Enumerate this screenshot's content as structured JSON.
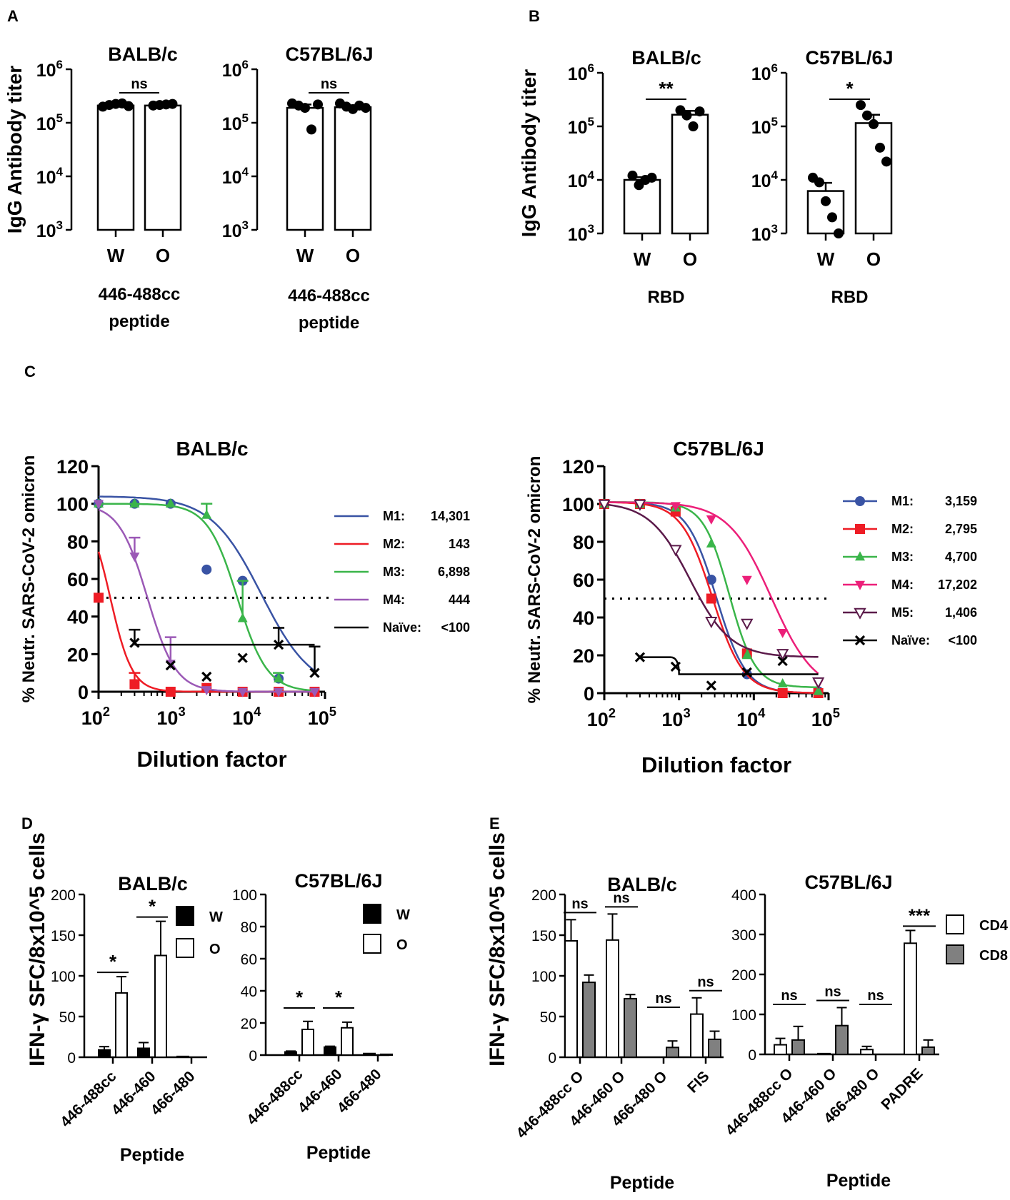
{
  "figure": {
    "panel_letters": [
      "A",
      "B",
      "C",
      "D",
      "E"
    ],
    "colors": {
      "black": "#000000",
      "white": "#ffffff",
      "gray_bar": "#808080",
      "blue": "#3953a4",
      "red": "#ee1c25",
      "green": "#3ab54a",
      "purple": "#9b59b6",
      "pink": "#ec1f79",
      "dark_purple": "#5b1a4a"
    }
  },
  "chart_data": [
    {
      "id": "A1",
      "panel": "A",
      "type": "bar",
      "title": "BALB/c",
      "ylabel": "IgG Antibody titer",
      "yscale": "log",
      "ylim": [
        1000,
        1000000
      ],
      "ytick_exponents": [
        "3",
        "4",
        "5",
        "6"
      ],
      "categories": [
        "W",
        "O"
      ],
      "values": [
        210000,
        210000
      ],
      "errors": [
        15000,
        8000
      ],
      "points": [
        [
          200000,
          215000,
          225000,
          230000,
          205000
        ],
        [
          210000,
          215000,
          220000,
          225000
        ]
      ],
      "xlabel_lines": [
        "446-488cc",
        "peptide"
      ],
      "significance": [
        {
          "between": [
            0,
            1
          ],
          "label": "ns"
        }
      ]
    },
    {
      "id": "A2",
      "panel": "A",
      "type": "bar",
      "title": "C57BL/6J",
      "ylabel": "",
      "yscale": "log",
      "ylim": [
        1000,
        1000000
      ],
      "ytick_exponents": [
        "3",
        "4",
        "5",
        "6"
      ],
      "categories": [
        "W",
        "O"
      ],
      "values": [
        190000,
        195000
      ],
      "errors": [
        30000,
        10000
      ],
      "points": [
        [
          230000,
          210000,
          190000,
          75000,
          220000
        ],
        [
          230000,
          200000,
          180000,
          210000,
          190000
        ]
      ],
      "xlabel_lines": [
        "446-488cc",
        "peptide"
      ],
      "significance": [
        {
          "between": [
            0,
            1
          ],
          "label": "ns"
        }
      ]
    },
    {
      "id": "B1",
      "panel": "B",
      "type": "bar",
      "title": "BALB/c",
      "ylabel": "IgG Antibody titer",
      "yscale": "log",
      "ylim": [
        1000,
        1000000
      ],
      "ytick_exponents": [
        "3",
        "4",
        "5",
        "6"
      ],
      "categories": [
        "W",
        "O"
      ],
      "values": [
        10000,
        165000
      ],
      "errors": [
        1200,
        30000
      ],
      "points": [
        [
          12000,
          8000,
          10000,
          11000
        ],
        [
          200000,
          160000,
          100000,
          190000
        ]
      ],
      "xlabel_lines": [
        "RBD"
      ],
      "significance": [
        {
          "between": [
            0,
            1
          ],
          "label": "**"
        }
      ]
    },
    {
      "id": "B2",
      "panel": "B",
      "type": "bar",
      "title": "C57BL/6J",
      "ylabel": "",
      "yscale": "log",
      "ylim": [
        1000,
        1000000
      ],
      "ytick_exponents": [
        "3",
        "4",
        "5",
        "6"
      ],
      "categories": [
        "W",
        "O"
      ],
      "values": [
        6200,
        115000
      ],
      "errors": [
        2600,
        50000
      ],
      "points": [
        [
          11000,
          9000,
          4000,
          2000,
          1000
        ],
        [
          250000,
          160000,
          110000,
          40000,
          22000
        ]
      ],
      "xlabel_lines": [
        "RBD"
      ],
      "significance": [
        {
          "between": [
            0,
            1
          ],
          "label": "*"
        }
      ]
    },
    {
      "id": "C1",
      "panel": "C",
      "type": "line",
      "title": "BALB/c",
      "ylabel": "% Neutr. SARS-CoV-2 omicron",
      "xlabel": "Dilution factor",
      "xscale": "log",
      "xlim": [
        100,
        100000
      ],
      "ylim": [
        0,
        120
      ],
      "xtick_exponents": [
        "2",
        "3",
        "4",
        "5"
      ],
      "yticks": [
        "0",
        "20",
        "40",
        "60",
        "80",
        "100",
        "120"
      ],
      "threshold": 50,
      "series": [
        {
          "name": "M1:",
          "value": "14,301",
          "color_key": "blue",
          "marker": "circle",
          "ic50": 14301,
          "top": 104,
          "bottom": 0,
          "slope": 1.3,
          "x": [
            100,
            300,
            900,
            2700,
            8100,
            24300
          ],
          "y": [
            100,
            100,
            100,
            65,
            59,
            7
          ],
          "err": [
            0,
            0,
            0,
            0,
            0,
            0
          ]
        },
        {
          "name": "M2:",
          "value": "143",
          "color_key": "red",
          "marker": "square",
          "ic50": 143,
          "top": 100,
          "bottom": 0,
          "slope": 3,
          "x": [
            100,
            300,
            900,
            2700,
            8100,
            24300,
            72900
          ],
          "y": [
            50,
            4,
            0,
            2,
            0,
            0,
            0
          ],
          "err": [
            0,
            6,
            0,
            0,
            0,
            0,
            0
          ]
        },
        {
          "name": "M3:",
          "value": "6,898",
          "color_key": "green",
          "marker": "triangle",
          "ic50": 6898,
          "top": 100,
          "bottom": 0,
          "slope": 2.2,
          "x": [
            100,
            300,
            900,
            2700,
            8100,
            24300
          ],
          "y": [
            100,
            100,
            100,
            94,
            39,
            7
          ],
          "err": [
            0,
            0,
            0,
            6,
            20,
            3
          ]
        },
        {
          "name": "M4:",
          "value": "444",
          "color_key": "purple",
          "marker": "triangle-down",
          "ic50": 444,
          "top": 100,
          "bottom": 0,
          "slope": 2.3,
          "x": [
            100,
            300,
            900,
            2700,
            8100,
            24300,
            72900
          ],
          "y": [
            100,
            72,
            15,
            1,
            0,
            0,
            0
          ],
          "err": [
            0,
            10,
            14,
            0,
            0,
            0,
            0
          ]
        },
        {
          "name": "Naïve:",
          "value": "<100",
          "color_key": "black",
          "marker": "x",
          "flat": 25,
          "flat_from": 300,
          "flat_to": 72900,
          "x": [
            300,
            900,
            2700,
            8100,
            24300,
            72900
          ],
          "y": [
            26,
            14,
            8,
            18,
            25,
            10
          ],
          "err": [
            7,
            0,
            0,
            0,
            9,
            14
          ]
        }
      ]
    },
    {
      "id": "C2",
      "panel": "C",
      "type": "line",
      "title": "C57BL/6J",
      "ylabel": "% Neutr. SARS-CoV-2 omicron",
      "xlabel": "Dilution factor",
      "xscale": "log",
      "xlim": [
        100,
        100000
      ],
      "ylim": [
        0,
        120
      ],
      "xtick_exponents": [
        "2",
        "3",
        "4",
        "5"
      ],
      "yticks": [
        "0",
        "20",
        "40",
        "60",
        "80",
        "100",
        "120"
      ],
      "threshold": 50,
      "series": [
        {
          "name": "M1:",
          "value": "3,159",
          "color_key": "blue",
          "marker": "circle",
          "ic50": 3159,
          "top": 101,
          "bottom": 0,
          "slope": 2.2,
          "x": [
            100,
            300,
            900,
            2700,
            8100,
            24300,
            72900
          ],
          "y": [
            100,
            100,
            97,
            60,
            10,
            0,
            1
          ],
          "err": [
            0,
            0,
            0,
            0,
            0,
            0,
            0
          ]
        },
        {
          "name": "M2:",
          "value": "2,795",
          "color_key": "red",
          "marker": "square",
          "ic50": 2795,
          "top": 101,
          "bottom": 0,
          "slope": 2.1,
          "x": [
            100,
            300,
            900,
            2700,
            8100,
            24300,
            72900
          ],
          "y": [
            100,
            100,
            96,
            50,
            21,
            0,
            0
          ],
          "err": [
            0,
            0,
            0,
            0,
            0,
            0,
            0
          ]
        },
        {
          "name": "M3:",
          "value": "4,700",
          "color_key": "green",
          "marker": "triangle",
          "ic50": 4700,
          "top": 101,
          "bottom": 3,
          "slope": 2.5,
          "x": [
            100,
            300,
            900,
            2700,
            8100,
            24300,
            72900
          ],
          "y": [
            100,
            100,
            98,
            79,
            20,
            5,
            1
          ],
          "err": [
            0,
            0,
            0,
            0,
            0,
            0,
            0
          ]
        },
        {
          "name": "M4:",
          "value": "17,202",
          "color_key": "pink",
          "marker": "triangle-down",
          "ic50": 17202,
          "top": 101,
          "bottom": 0,
          "slope": 1.5,
          "x": [
            100,
            300,
            900,
            2700,
            8100,
            24300,
            72900
          ],
          "y": [
            100,
            100,
            99,
            92,
            60,
            32,
            5
          ],
          "err": [
            0,
            0,
            0,
            0,
            0,
            0,
            0
          ]
        },
        {
          "name": "M5:",
          "value": "1,406",
          "color_key": "dark_purple",
          "marker": "triangle-down-open",
          "ic50": 1406,
          "top": 101,
          "bottom": 19,
          "slope": 1.6,
          "x": [
            100,
            300,
            900,
            2700,
            8100,
            24300,
            72900
          ],
          "y": [
            100,
            100,
            76,
            38,
            37,
            21,
            6
          ],
          "err": [
            0,
            0,
            0,
            0,
            0,
            0,
            0
          ]
        },
        {
          "name": "Naïve:",
          "value": "<100",
          "color_key": "black",
          "marker": "x",
          "flat": 10,
          "flat_from": 300,
          "flat_to": 72900,
          "step_from": 19,
          "step_at": 1000,
          "x": [
            300,
            900,
            2700,
            8100,
            24300
          ],
          "y": [
            19,
            14,
            4,
            11,
            17
          ],
          "err": [
            0,
            0,
            0,
            0,
            0
          ]
        }
      ]
    },
    {
      "id": "D1",
      "panel": "D",
      "type": "bar",
      "title": "BALB/c",
      "ylabel": "IFN-γ SFC/8x10^5 cells",
      "xlabel": "Peptide",
      "ylim": [
        0,
        200
      ],
      "yticks": [
        "0",
        "50",
        "100",
        "150",
        "200"
      ],
      "categories": [
        "446-488cc",
        "446-460",
        "466-480"
      ],
      "series": [
        {
          "name": "W",
          "color_key": "black",
          "values": [
            9,
            11,
            1
          ],
          "errors": [
            4,
            7,
            0
          ]
        },
        {
          "name": "O",
          "color_key": "white",
          "values": [
            79,
            125,
            0
          ],
          "errors": [
            20,
            42,
            0
          ]
        }
      ],
      "significance": [
        {
          "category": 0,
          "label": "*"
        },
        {
          "category": 1,
          "label": "*"
        }
      ]
    },
    {
      "id": "D2",
      "panel": "D",
      "type": "bar",
      "title": "C57BL/6J",
      "ylabel": "",
      "xlabel": "Peptide",
      "ylim": [
        0,
        100
      ],
      "yticks": [
        "0",
        "20",
        "40",
        "60",
        "80",
        "100"
      ],
      "categories": [
        "446-488cc",
        "446-460",
        "466-480"
      ],
      "series": [
        {
          "name": "W",
          "color_key": "black",
          "values": [
            2,
            5,
            1
          ],
          "errors": [
            0.5,
            0.5,
            0
          ]
        },
        {
          "name": "O",
          "color_key": "white",
          "values": [
            16,
            17,
            0.5
          ],
          "errors": [
            5,
            3.5,
            0
          ]
        }
      ],
      "significance": [
        {
          "category": 0,
          "label": "*"
        },
        {
          "category": 1,
          "label": "*"
        }
      ]
    },
    {
      "id": "E1",
      "panel": "E",
      "type": "bar",
      "title": "BALB/c",
      "ylabel": "IFN-γ SFC/8x10^5 cells",
      "xlabel": "Peptide",
      "ylim": [
        0,
        200
      ],
      "yticks": [
        "0",
        "50",
        "100",
        "150",
        "200"
      ],
      "categories": [
        "446-488cc O",
        "446-460 O",
        "466-480 O",
        "FIS"
      ],
      "series": [
        {
          "name": "CD4",
          "color_key": "white",
          "values": [
            143,
            144,
            0,
            53
          ],
          "errors": [
            26,
            32,
            0,
            20
          ]
        },
        {
          "name": "CD8",
          "color_key": "gray_bar",
          "values": [
            92,
            72,
            12,
            22
          ],
          "errors": [
            9,
            5,
            8,
            10
          ]
        }
      ],
      "significance": [
        {
          "category": 0,
          "label": "ns"
        },
        {
          "category": 1,
          "label": "ns"
        },
        {
          "category": 2,
          "label": "ns"
        },
        {
          "category": 3,
          "label": "ns"
        }
      ]
    },
    {
      "id": "E2",
      "panel": "E",
      "type": "bar",
      "title": "C57BL/6J",
      "ylabel": "",
      "xlabel": "Peptide",
      "ylim": [
        0,
        400
      ],
      "yticks": [
        "0",
        "100",
        "200",
        "300",
        "400"
      ],
      "categories": [
        "446-488cc O",
        "446-460 O",
        "466-480 O",
        "PADRE"
      ],
      "series": [
        {
          "name": "CD4",
          "color_key": "white",
          "values": [
            24,
            2,
            12,
            278
          ],
          "errors": [
            16,
            0,
            8,
            32
          ]
        },
        {
          "name": "CD8",
          "color_key": "gray_bar",
          "values": [
            36,
            72,
            0,
            18
          ],
          "errors": [
            34,
            45,
            0,
            18
          ]
        }
      ],
      "significance": [
        {
          "category": 0,
          "label": "ns"
        },
        {
          "category": 1,
          "label": "ns"
        },
        {
          "category": 2,
          "label": "ns"
        },
        {
          "category": 3,
          "label": "***"
        }
      ]
    }
  ]
}
